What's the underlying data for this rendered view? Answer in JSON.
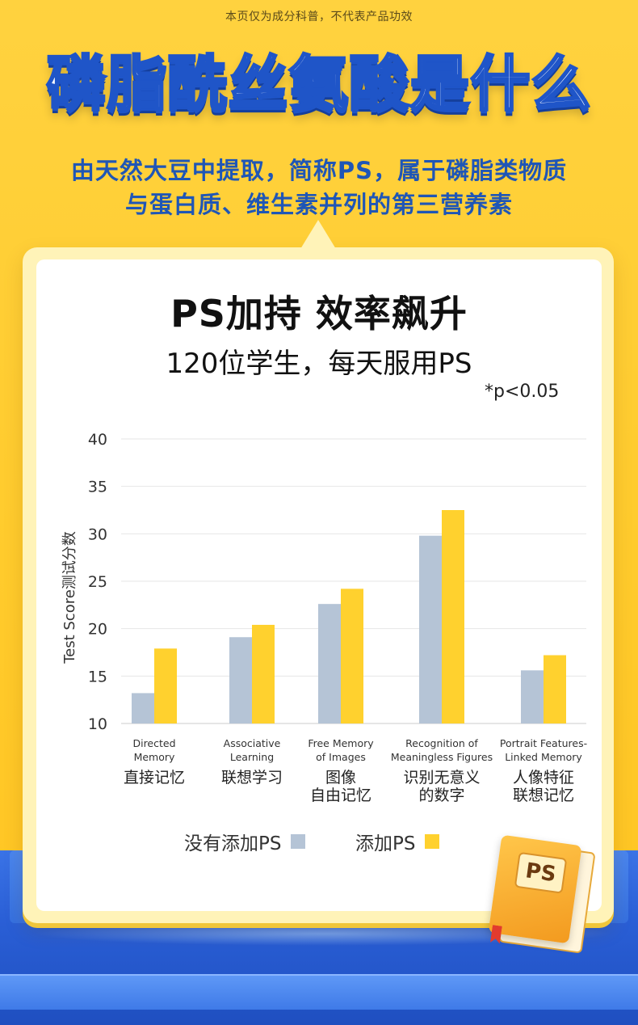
{
  "header": {
    "disclaimer": "本页仅为成分科普，不代表产品功效",
    "title": "磷脂酰丝氨酸是什么",
    "subtitle_line1": "由天然大豆中提取，简称PS，属于磷脂类物质",
    "subtitle_line2": "与蛋白质、维生素并列的第三营养素"
  },
  "book_label": "PS",
  "colors": {
    "title_blue": "#1f55c8",
    "subtitle_blue": "#1f56b6",
    "series_without": "#b5c4d6",
    "series_with": "#ffd12e"
  },
  "chart_data": {
    "type": "bar",
    "title": "PS加持 效率飙升",
    "subtitle": "120位学生，每天服用PS",
    "annotation": "*p<0.05",
    "ylabel": "Test Score测试分数",
    "xlabel": "",
    "ylim": [
      10,
      40
    ],
    "yticks": [
      40,
      35,
      30,
      25,
      20,
      15,
      10
    ],
    "grid": true,
    "legend_position": "bottom",
    "categories": [
      {
        "en_line1": "Directed",
        "en_line2": "Memory",
        "zh_line1": "直接记忆",
        "zh_line2": ""
      },
      {
        "en_line1": "Associative",
        "en_line2": "Learning",
        "zh_line1": "联想学习",
        "zh_line2": ""
      },
      {
        "en_line1": "Free Memory",
        "en_line2": "of Images",
        "zh_line1": "图像",
        "zh_line2": "自由记忆"
      },
      {
        "en_line1": "Recognition of",
        "en_line2": "Meaningless Figures",
        "zh_line1": "识别无意义",
        "zh_line2": "的数字"
      },
      {
        "en_line1": "Portrait Features-",
        "en_line2": "Linked Memory",
        "zh_line1": "人像特征",
        "zh_line2": "联想记忆"
      }
    ],
    "series": [
      {
        "name": "没有添加PS",
        "values": [
          13.2,
          19.1,
          22.6,
          29.8,
          15.6
        ]
      },
      {
        "name": "添加PS",
        "values": [
          17.9,
          20.4,
          24.2,
          32.5,
          17.2
        ]
      }
    ]
  }
}
